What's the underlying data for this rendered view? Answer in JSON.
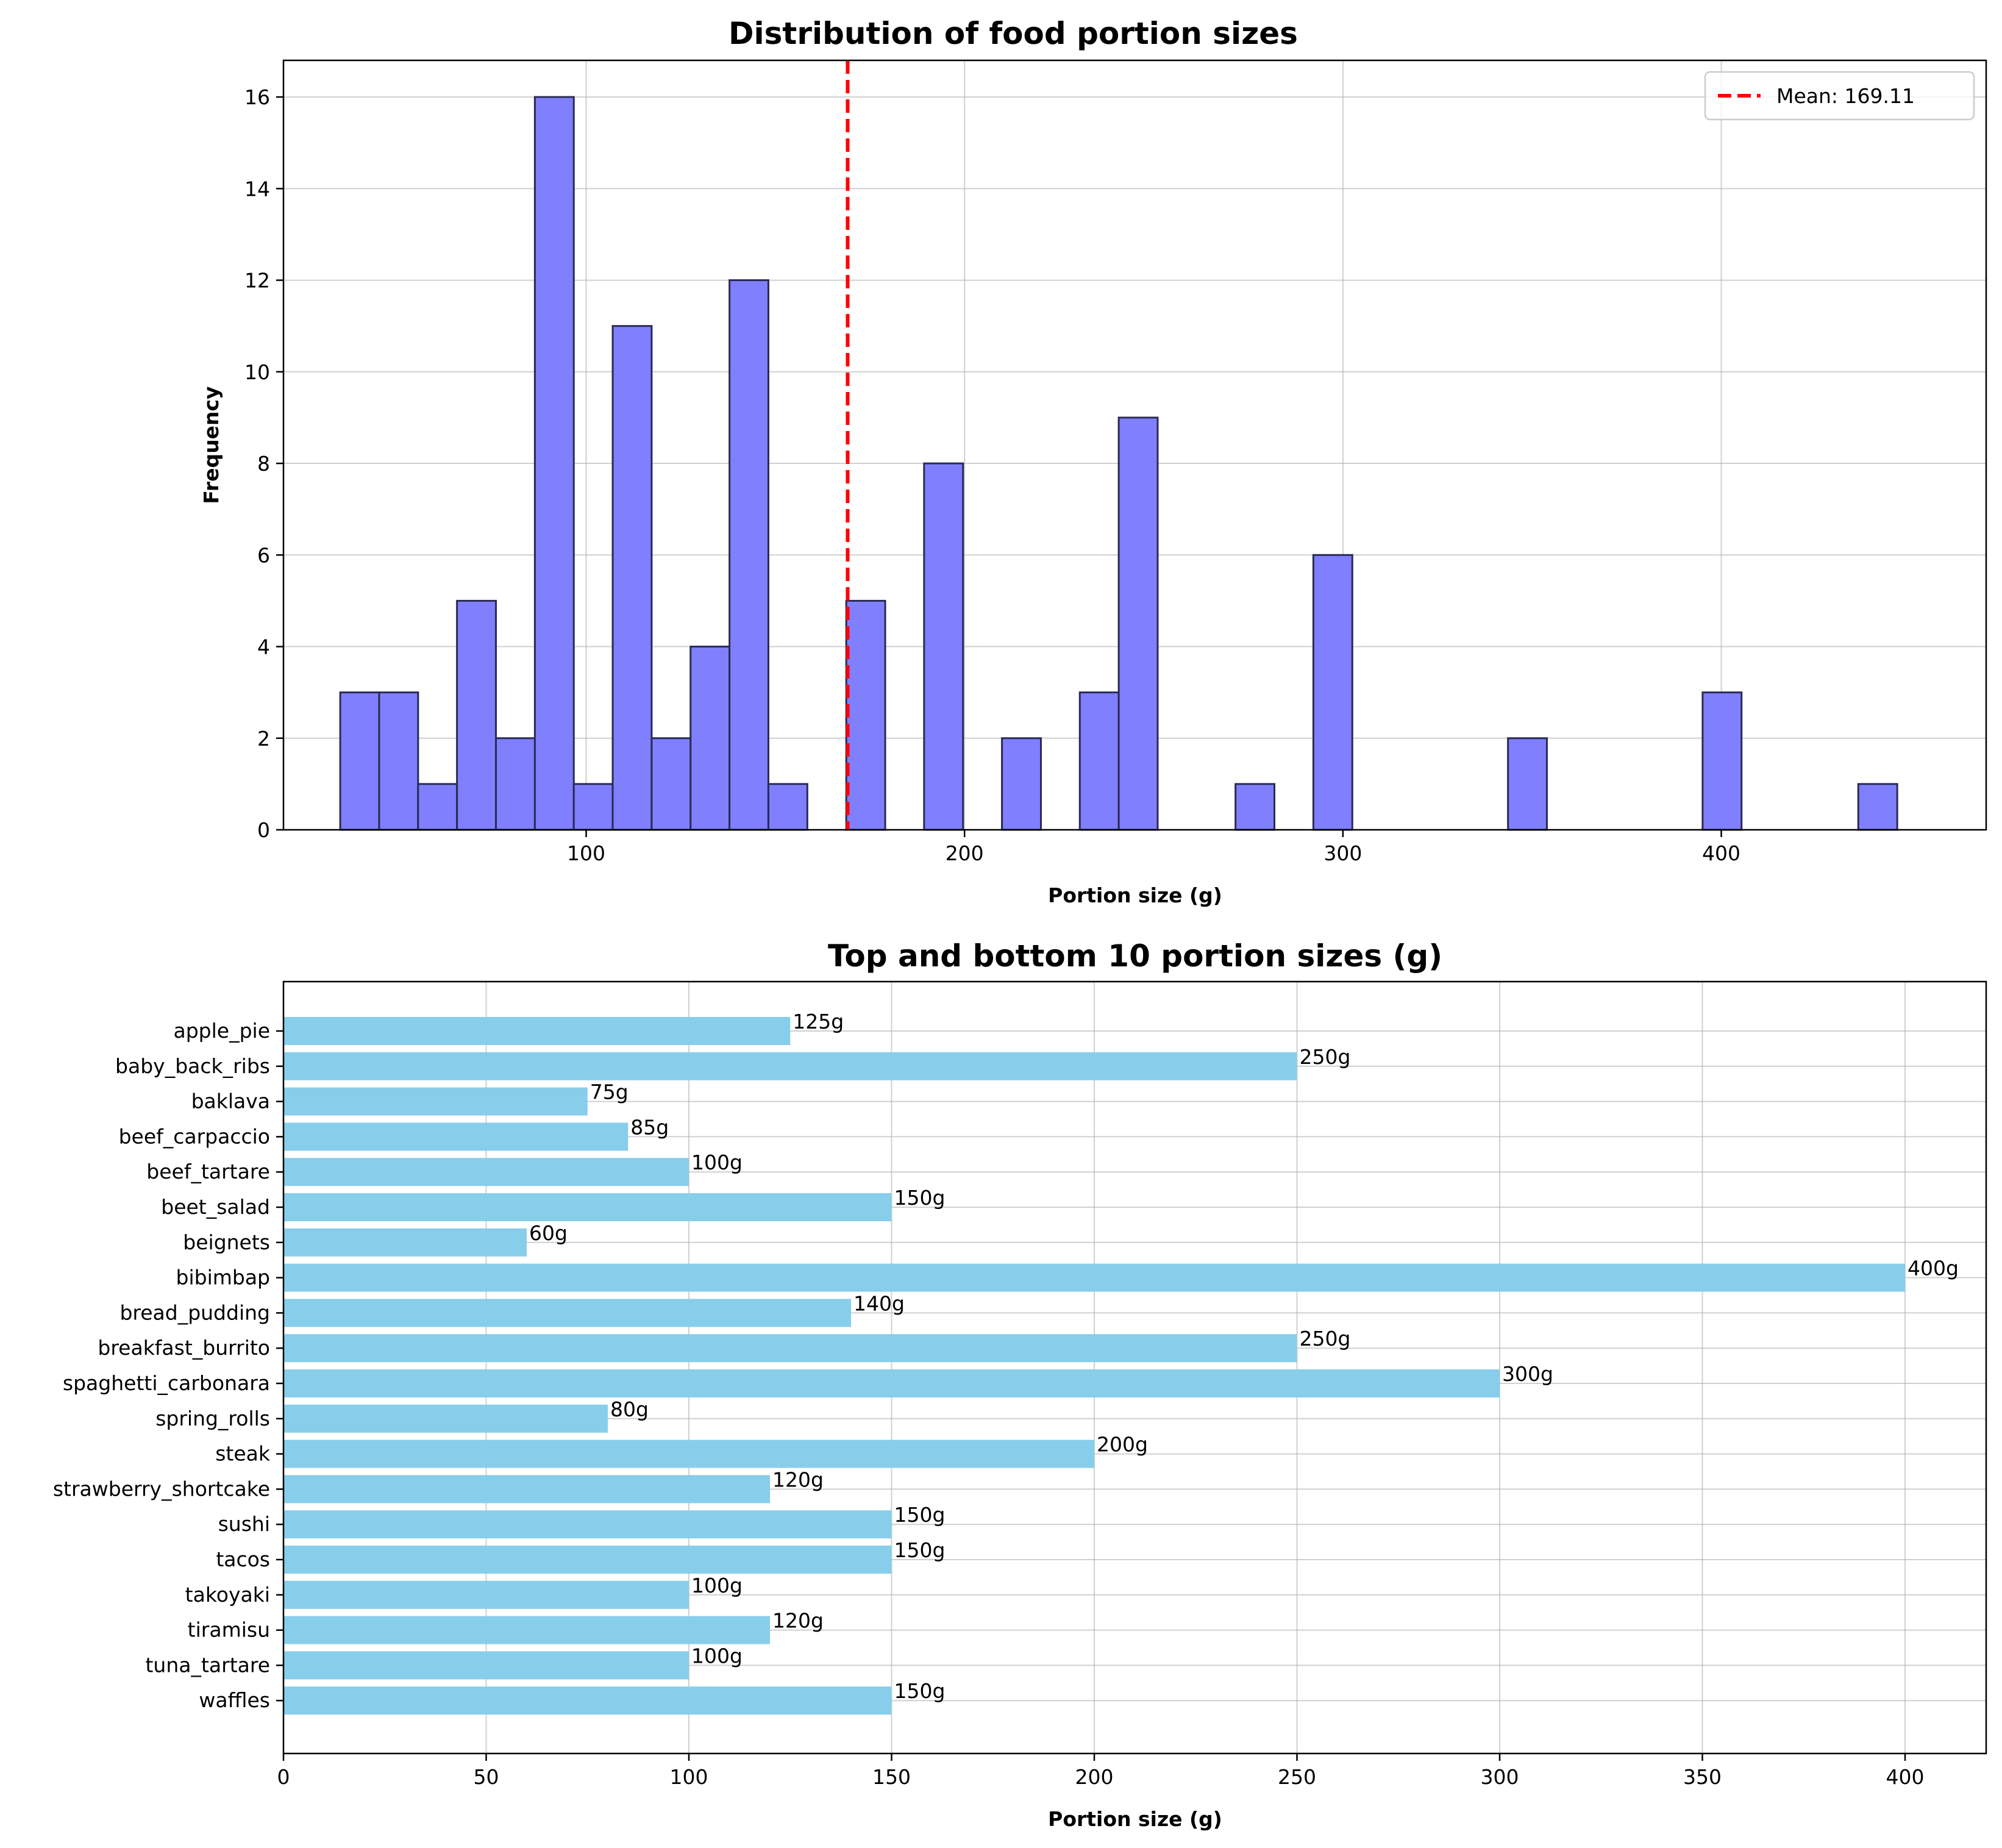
{
  "chart_data": [
    {
      "type": "bar",
      "subtype": "histogram",
      "title": "Distribution of food portion sizes",
      "xlabel": "Portion size (g)",
      "ylabel": "Frequency",
      "xlim": [
        20,
        470
      ],
      "ylim": [
        0,
        16.8
      ],
      "xticks": [
        100,
        200,
        300,
        400
      ],
      "yticks": [
        0,
        2,
        4,
        6,
        8,
        10,
        12,
        14,
        16
      ],
      "grid": true,
      "bin_edges": [
        35,
        45.29,
        55.58,
        65.86,
        76.15,
        86.44,
        96.73,
        107.01,
        117.3,
        127.59,
        137.88,
        148.16,
        158.45,
        168.74,
        179.03,
        189.31,
        199.6,
        209.89,
        220.18,
        230.46,
        240.75,
        251.04,
        261.33,
        271.61,
        281.9,
        292.19,
        302.48,
        312.76,
        323.05,
        333.34,
        343.63,
        353.91,
        364.2,
        374.49,
        384.78,
        395.06,
        405.35,
        415.64,
        425.93,
        436.21,
        446.5
      ],
      "counts": [
        3,
        3,
        1,
        5,
        2,
        16,
        1,
        11,
        2,
        4,
        12,
        1,
        0,
        5,
        0,
        8,
        0,
        2,
        0,
        3,
        9,
        0,
        0,
        1,
        0,
        6,
        0,
        0,
        0,
        0,
        2,
        0,
        0,
        0,
        0,
        3,
        0,
        0,
        0,
        1
      ],
      "bar_color": "#8080ff",
      "edge_color": "#2a2a55",
      "mean_line": {
        "value": 169.11,
        "color": "#ff0000",
        "label": "Mean: 169.11"
      },
      "legend_position": "top-right"
    },
    {
      "type": "bar",
      "orientation": "horizontal",
      "title": "Top and bottom 10 portion sizes (g)",
      "xlabel": "Portion size (g)",
      "ylabel": "",
      "xlim": [
        0,
        420
      ],
      "xticks": [
        0,
        50,
        100,
        150,
        200,
        250,
        300,
        350,
        400
      ],
      "grid": true,
      "bar_color": "#87ceeb",
      "categories": [
        "apple_pie",
        "baby_back_ribs",
        "baklava",
        "beef_carpaccio",
        "beef_tartare",
        "beet_salad",
        "beignets",
        "bibimbap",
        "bread_pudding",
        "breakfast_burrito",
        "spaghetti_carbonara",
        "spring_rolls",
        "steak",
        "strawberry_shortcake",
        "sushi",
        "tacos",
        "takoyaki",
        "tiramisu",
        "tuna_tartare",
        "waffles"
      ],
      "values": [
        125,
        250,
        75,
        85,
        100,
        150,
        60,
        400,
        140,
        250,
        300,
        80,
        200,
        120,
        150,
        150,
        100,
        120,
        100,
        150
      ],
      "labels": [
        "125g",
        "250g",
        "75g",
        "85g",
        "100g",
        "150g",
        "60g",
        "400g",
        "140g",
        "250g",
        "300g",
        "80g",
        "200g",
        "120g",
        "150g",
        "150g",
        "100g",
        "120g",
        "100g",
        "150g"
      ]
    }
  ]
}
